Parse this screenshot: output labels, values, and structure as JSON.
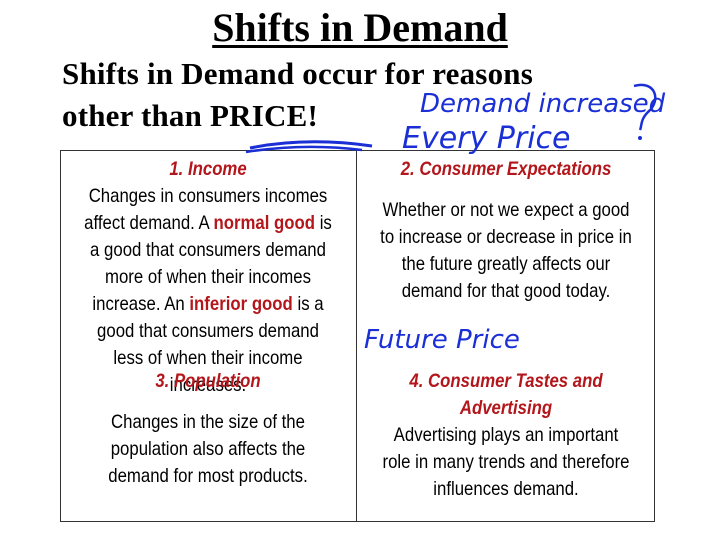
{
  "title": "Shifts in Demand",
  "subtitle_line1": "Shifts in Demand occur for reasons",
  "subtitle_line2": "other than PRICE!",
  "annotations": {
    "demand_increased": "Demand increased",
    "every_price": "Every Price",
    "future_price": "Future Price",
    "ink_color": "#1a2fd6"
  },
  "cells": {
    "income": {
      "heading": "1. Income",
      "text1": "Changes in consumers incomes affect demand.  A ",
      "normal_good": "normal good",
      "text2": " is a good that consumers demand more of when their incomes increase. An ",
      "inferior_good": "inferior good",
      "text3": " is a good that consumers demand less of when their income increases."
    },
    "expectations": {
      "heading": "2. Consumer Expectations",
      "body": "Whether or not we expect a good to increase or decrease in price in the future greatly affects our demand for that good today."
    },
    "population": {
      "heading": "3. Population",
      "body": "Changes in the size of the population also affects the demand for most products."
    },
    "tastes": {
      "heading": "4. Consumer Tastes and Advertising",
      "body": "Advertising plays an important role in many trends and therefore influences demand."
    }
  },
  "colors": {
    "heading_red": "#b3161b",
    "text": "#000000"
  }
}
